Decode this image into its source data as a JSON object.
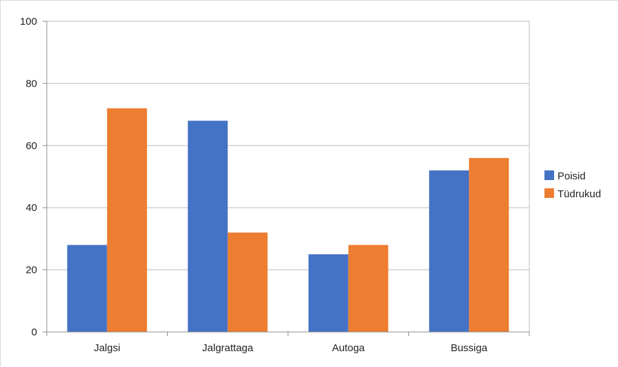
{
  "chart_data": {
    "type": "bar",
    "title": "",
    "xlabel": "",
    "ylabel": "",
    "categories": [
      "Jalgsi",
      "Jalgrattaga",
      "Autoga",
      "Bussiga"
    ],
    "series": [
      {
        "name": "Poisid",
        "color": "#4472c4",
        "values": [
          28,
          68,
          25,
          52
        ]
      },
      {
        "name": "Tüdrukud",
        "color": "#ed7d31",
        "values": [
          72,
          32,
          28,
          56
        ]
      }
    ],
    "ylim": [
      0,
      100
    ],
    "yticks": [
      0,
      20,
      40,
      60,
      80,
      100
    ],
    "grid": true,
    "legend_position": "right"
  }
}
